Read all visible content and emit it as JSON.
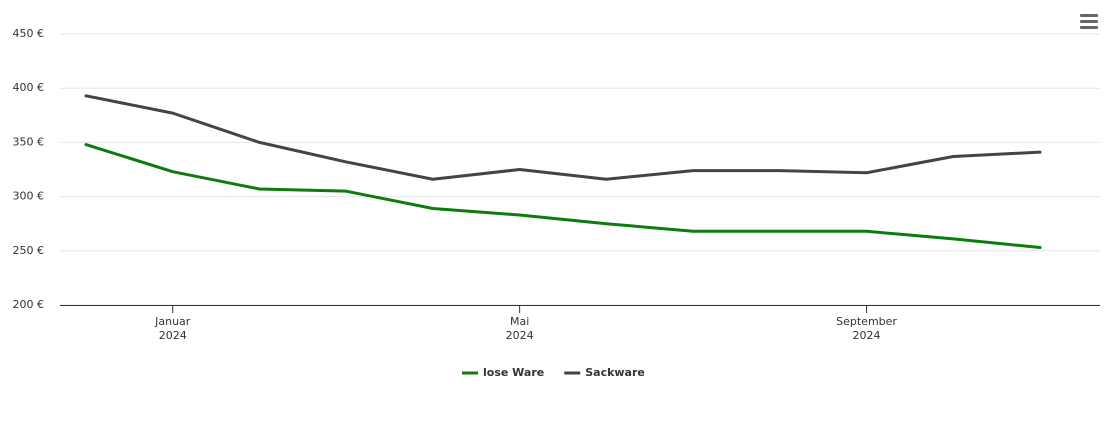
{
  "chart_data": {
    "type": "line",
    "x": [
      "2023-12",
      "2024-01",
      "2024-02",
      "2024-03",
      "2024-04",
      "2024-05",
      "2024-06",
      "2024-07",
      "2024-08",
      "2024-09",
      "2024-10",
      "2024-11"
    ],
    "xlim": [
      "2023-12",
      "2024-11"
    ],
    "xticks": [
      {
        "value": "2024-01",
        "label": [
          "Januar",
          "2024"
        ]
      },
      {
        "value": "2024-05",
        "label": [
          "Mai",
          "2024"
        ]
      },
      {
        "value": "2024-09",
        "label": [
          "September",
          "2024"
        ]
      }
    ],
    "ylim": [
      200,
      450
    ],
    "yticks": [
      {
        "value": 200,
        "label": "200 €"
      },
      {
        "value": 250,
        "label": "250 €"
      },
      {
        "value": 300,
        "label": "300 €"
      },
      {
        "value": 350,
        "label": "350 €"
      },
      {
        "value": 400,
        "label": "400 €"
      },
      {
        "value": 450,
        "label": "450 €"
      }
    ],
    "grid": true,
    "legend": "bottom",
    "series": [
      {
        "name": "lose Ware",
        "color": "#0c7d0c",
        "values": [
          348,
          323,
          307,
          305,
          289,
          283,
          275,
          268,
          268,
          268,
          261,
          253
        ]
      },
      {
        "name": "Sackware",
        "color": "#434348",
        "values": [
          393,
          377,
          350,
          332,
          316,
          325,
          316,
          324,
          324,
          322,
          337,
          341
        ]
      }
    ]
  }
}
